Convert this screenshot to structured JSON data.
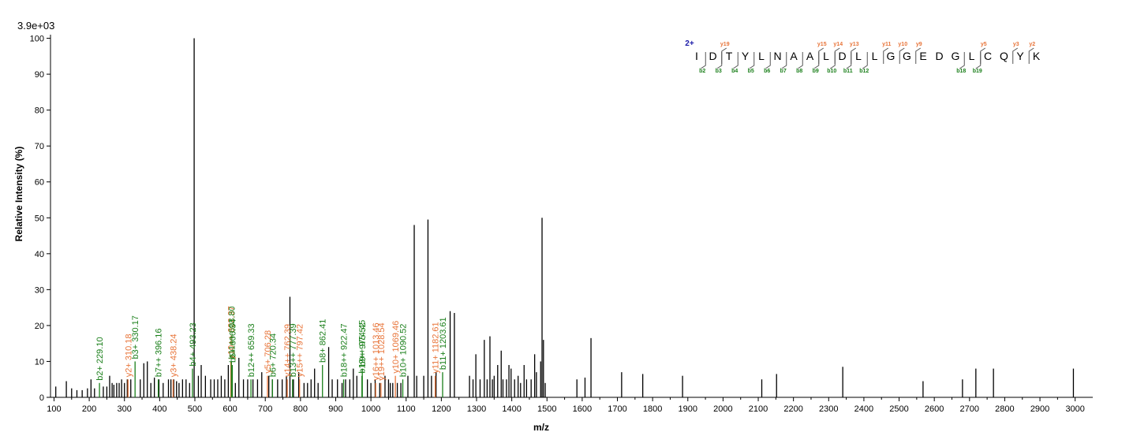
{
  "chart_data": {
    "type": "bar",
    "scale_label": "3.9e+03",
    "xlabel": "m/z",
    "ylabel": "Relative   Intensity (%)",
    "xlim": [
      90,
      3050
    ],
    "ylim": [
      0,
      101
    ],
    "x_ticks": [
      100,
      200,
      300,
      400,
      500,
      600,
      700,
      800,
      900,
      1000,
      1100,
      1200,
      1300,
      1400,
      1500,
      1600,
      1700,
      1800,
      1900,
      2000,
      2100,
      2200,
      2300,
      2400,
      2500,
      2600,
      2700,
      2800,
      2900,
      3000
    ],
    "y_ticks": [
      0,
      10,
      20,
      30,
      40,
      50,
      60,
      70,
      80,
      90,
      100
    ],
    "colors": {
      "b_ion": "#1a7f1a",
      "y_ion": "#e8753a",
      "unassigned": "#000000",
      "charge": "#1a1aa8"
    },
    "peaks_unassigned": [
      [
        105,
        3
      ],
      [
        135,
        4.5
      ],
      [
        150,
        2.5
      ],
      [
        165,
        2
      ],
      [
        180,
        2
      ],
      [
        195,
        2.5
      ],
      [
        205,
        5
      ],
      [
        215,
        2.5
      ],
      [
        240,
        3
      ],
      [
        250,
        3
      ],
      [
        258,
        6
      ],
      [
        265,
        4
      ],
      [
        270,
        3.5
      ],
      [
        278,
        4
      ],
      [
        285,
        4
      ],
      [
        292,
        5
      ],
      [
        300,
        4
      ],
      [
        308,
        5
      ],
      [
        318,
        5
      ],
      [
        345,
        5
      ],
      [
        355,
        9.5
      ],
      [
        365,
        10
      ],
      [
        375,
        4
      ],
      [
        385,
        5.5
      ],
      [
        398,
        5
      ],
      [
        410,
        4
      ],
      [
        425,
        5
      ],
      [
        432,
        5
      ],
      [
        440,
        5
      ],
      [
        448,
        4.5
      ],
      [
        455,
        4
      ],
      [
        465,
        5
      ],
      [
        475,
        5
      ],
      [
        485,
        4
      ],
      [
        498,
        100
      ],
      [
        510,
        6
      ],
      [
        518,
        9
      ],
      [
        530,
        6
      ],
      [
        545,
        5
      ],
      [
        555,
        5
      ],
      [
        565,
        5
      ],
      [
        575,
        6
      ],
      [
        585,
        5
      ],
      [
        595,
        9
      ],
      [
        615,
        4
      ],
      [
        625,
        11
      ],
      [
        638,
        5
      ],
      [
        650,
        5
      ],
      [
        665,
        5
      ],
      [
        678,
        5
      ],
      [
        690,
        7
      ],
      [
        710,
        6
      ],
      [
        720,
        5
      ],
      [
        735,
        5
      ],
      [
        748,
        5
      ],
      [
        760,
        6
      ],
      [
        770,
        28
      ],
      [
        780,
        5
      ],
      [
        795,
        7
      ],
      [
        810,
        4
      ],
      [
        820,
        4
      ],
      [
        830,
        5
      ],
      [
        840,
        8
      ],
      [
        850,
        4
      ],
      [
        880,
        14
      ],
      [
        890,
        5
      ],
      [
        905,
        5
      ],
      [
        918,
        4
      ],
      [
        928,
        5
      ],
      [
        940,
        5
      ],
      [
        950,
        8
      ],
      [
        960,
        6
      ],
      [
        990,
        5
      ],
      [
        1000,
        4
      ],
      [
        1012,
        5
      ],
      [
        1025,
        4
      ],
      [
        1040,
        6
      ],
      [
        1050,
        5
      ],
      [
        1055,
        4
      ],
      [
        1062,
        4
      ],
      [
        1075,
        4
      ],
      [
        1085,
        4
      ],
      [
        1105,
        6
      ],
      [
        1123,
        48
      ],
      [
        1130,
        6
      ],
      [
        1150,
        6
      ],
      [
        1162,
        49.5
      ],
      [
        1172,
        6
      ],
      [
        1185,
        7
      ],
      [
        1225,
        24
      ],
      [
        1237,
        23.5
      ],
      [
        1280,
        6
      ],
      [
        1290,
        5
      ],
      [
        1298,
        12
      ],
      [
        1310,
        5
      ],
      [
        1322,
        16
      ],
      [
        1330,
        5
      ],
      [
        1338,
        17
      ],
      [
        1345,
        5
      ],
      [
        1350,
        6
      ],
      [
        1360,
        9
      ],
      [
        1370,
        13
      ],
      [
        1375,
        5
      ],
      [
        1385,
        5
      ],
      [
        1392,
        9
      ],
      [
        1398,
        8
      ],
      [
        1408,
        5
      ],
      [
        1418,
        6
      ],
      [
        1425,
        4
      ],
      [
        1435,
        9
      ],
      [
        1442,
        5
      ],
      [
        1455,
        5
      ],
      [
        1465,
        12
      ],
      [
        1470,
        7
      ],
      [
        1482,
        10
      ],
      [
        1486,
        50
      ],
      [
        1490,
        16
      ],
      [
        1495,
        4
      ],
      [
        1585,
        5
      ],
      [
        1608,
        5.5
      ],
      [
        1625,
        16.5
      ],
      [
        1712,
        7
      ],
      [
        1772,
        6.5
      ],
      [
        1885,
        6
      ],
      [
        2110,
        5
      ],
      [
        2152,
        6.5
      ],
      [
        2340,
        8.5
      ],
      [
        2568,
        4.5
      ],
      [
        2680,
        5
      ],
      [
        2718,
        8
      ],
      [
        2768,
        8
      ],
      [
        2995,
        8
      ]
    ],
    "annotated_peaks": [
      {
        "mz": 229.1,
        "intensity": 4,
        "ion": "b",
        "label": "b2+ 229.10"
      },
      {
        "mz": 310.18,
        "intensity": 5,
        "ion": "y",
        "label": "y2+ 310.18"
      },
      {
        "mz": 330.17,
        "intensity": 10,
        "ion": "b",
        "label": "b3+ 330.17"
      },
      {
        "mz": 396.16,
        "intensity": 5,
        "ion": "b",
        "label": "b7++ 396.16"
      },
      {
        "mz": 438.24,
        "intensity": 5,
        "ion": "y",
        "label": "y3+ 438.24"
      },
      {
        "mz": 493.23,
        "intensity": 8,
        "ion": "b",
        "label": "b4+ 493.23"
      },
      {
        "mz": 602.37,
        "intensity": 10,
        "ion": "y",
        "label": "y10++ 602.37"
      },
      {
        "mz": 603.8,
        "intensity": 10,
        "ion": "b",
        "label": "b11++ 603.80"
      },
      {
        "mz": 606.34,
        "intensity": 9,
        "ion": "b",
        "label": "b5+ 606.34"
      },
      {
        "mz": 659.33,
        "intensity": 5,
        "ion": "b",
        "label": "b12++ 659.33"
      },
      {
        "mz": 706.28,
        "intensity": 6,
        "ion": "y",
        "label": "y5+ 706.28"
      },
      {
        "mz": 720.34,
        "intensity": 5,
        "ion": "b",
        "label": "b6+ 720.34"
      },
      {
        "mz": 762.39,
        "intensity": 5,
        "ion": "y",
        "label": "y14++ 762.39"
      },
      {
        "mz": 777.39,
        "intensity": 5,
        "ion": "b",
        "label": "b13++ 777.39"
      },
      {
        "mz": 797.42,
        "intensity": 5,
        "ion": "y",
        "label": "y15++ 797.42"
      },
      {
        "mz": 862.41,
        "intensity": 9,
        "ion": "b",
        "label": "b8+ 862.41"
      },
      {
        "mz": 922.47,
        "intensity": 5,
        "ion": "b",
        "label": "b18++ 922.47"
      },
      {
        "mz": 974.45,
        "intensity": 6,
        "ion": "b",
        "label": "b19++ 974.45"
      },
      {
        "mz": 975.52,
        "intensity": 8,
        "ion": "b",
        "label": "b9+ 975.52"
      },
      {
        "mz": 1013.46,
        "intensity": 4,
        "ion": "y",
        "label": "y16++ 1013.46"
      },
      {
        "mz": 1028.54,
        "intensity": 4,
        "ion": "y",
        "label": "y19++ 1028.54"
      },
      {
        "mz": 1069.46,
        "intensity": 6,
        "ion": "y",
        "label": "y10+ 1069.46"
      },
      {
        "mz": 1090.52,
        "intensity": 5,
        "ion": "b",
        "label": "b10+ 1090.52"
      },
      {
        "mz": 1182.61,
        "intensity": 6,
        "ion": "y",
        "label": "y11+ 1182.61"
      },
      {
        "mz": 1203.61,
        "intensity": 7,
        "ion": "b",
        "label": "b11+ 1203.61"
      }
    ],
    "sequence": {
      "charge": "2+",
      "residues": [
        "I",
        "D",
        "T",
        "Y",
        "L",
        "N",
        "A",
        "A",
        "L",
        "D",
        "L",
        "L",
        "G",
        "G",
        "E",
        "D",
        "G",
        "L",
        "C",
        "Q",
        "Y",
        "K"
      ],
      "b_ions": [
        {
          "after": 1,
          "label": "b2"
        },
        {
          "after": 2,
          "label": "b3"
        },
        {
          "after": 3,
          "label": "b4"
        },
        {
          "after": 4,
          "label": "b5"
        },
        {
          "after": 5,
          "label": "b6"
        },
        {
          "after": 6,
          "label": "b7"
        },
        {
          "after": 7,
          "label": "b8"
        },
        {
          "after": 8,
          "label": "b9"
        },
        {
          "after": 9,
          "label": "b10"
        },
        {
          "after": 10,
          "label": "b11"
        },
        {
          "after": 11,
          "label": "b12"
        },
        {
          "after": 17,
          "label": "b18"
        },
        {
          "after": 18,
          "label": "b19"
        }
      ],
      "y_ions": [
        {
          "after": 2,
          "label": "y19"
        },
        {
          "after": 8,
          "label": "y15"
        },
        {
          "after": 9,
          "label": "y14"
        },
        {
          "after": 10,
          "label": "y13"
        },
        {
          "after": 12,
          "label": "y11"
        },
        {
          "after": 13,
          "label": "y10"
        },
        {
          "after": 14,
          "label": "y9"
        },
        {
          "after": 18,
          "label": "y5"
        },
        {
          "after": 20,
          "label": "y3"
        },
        {
          "after": 21,
          "label": "y2"
        }
      ]
    }
  }
}
